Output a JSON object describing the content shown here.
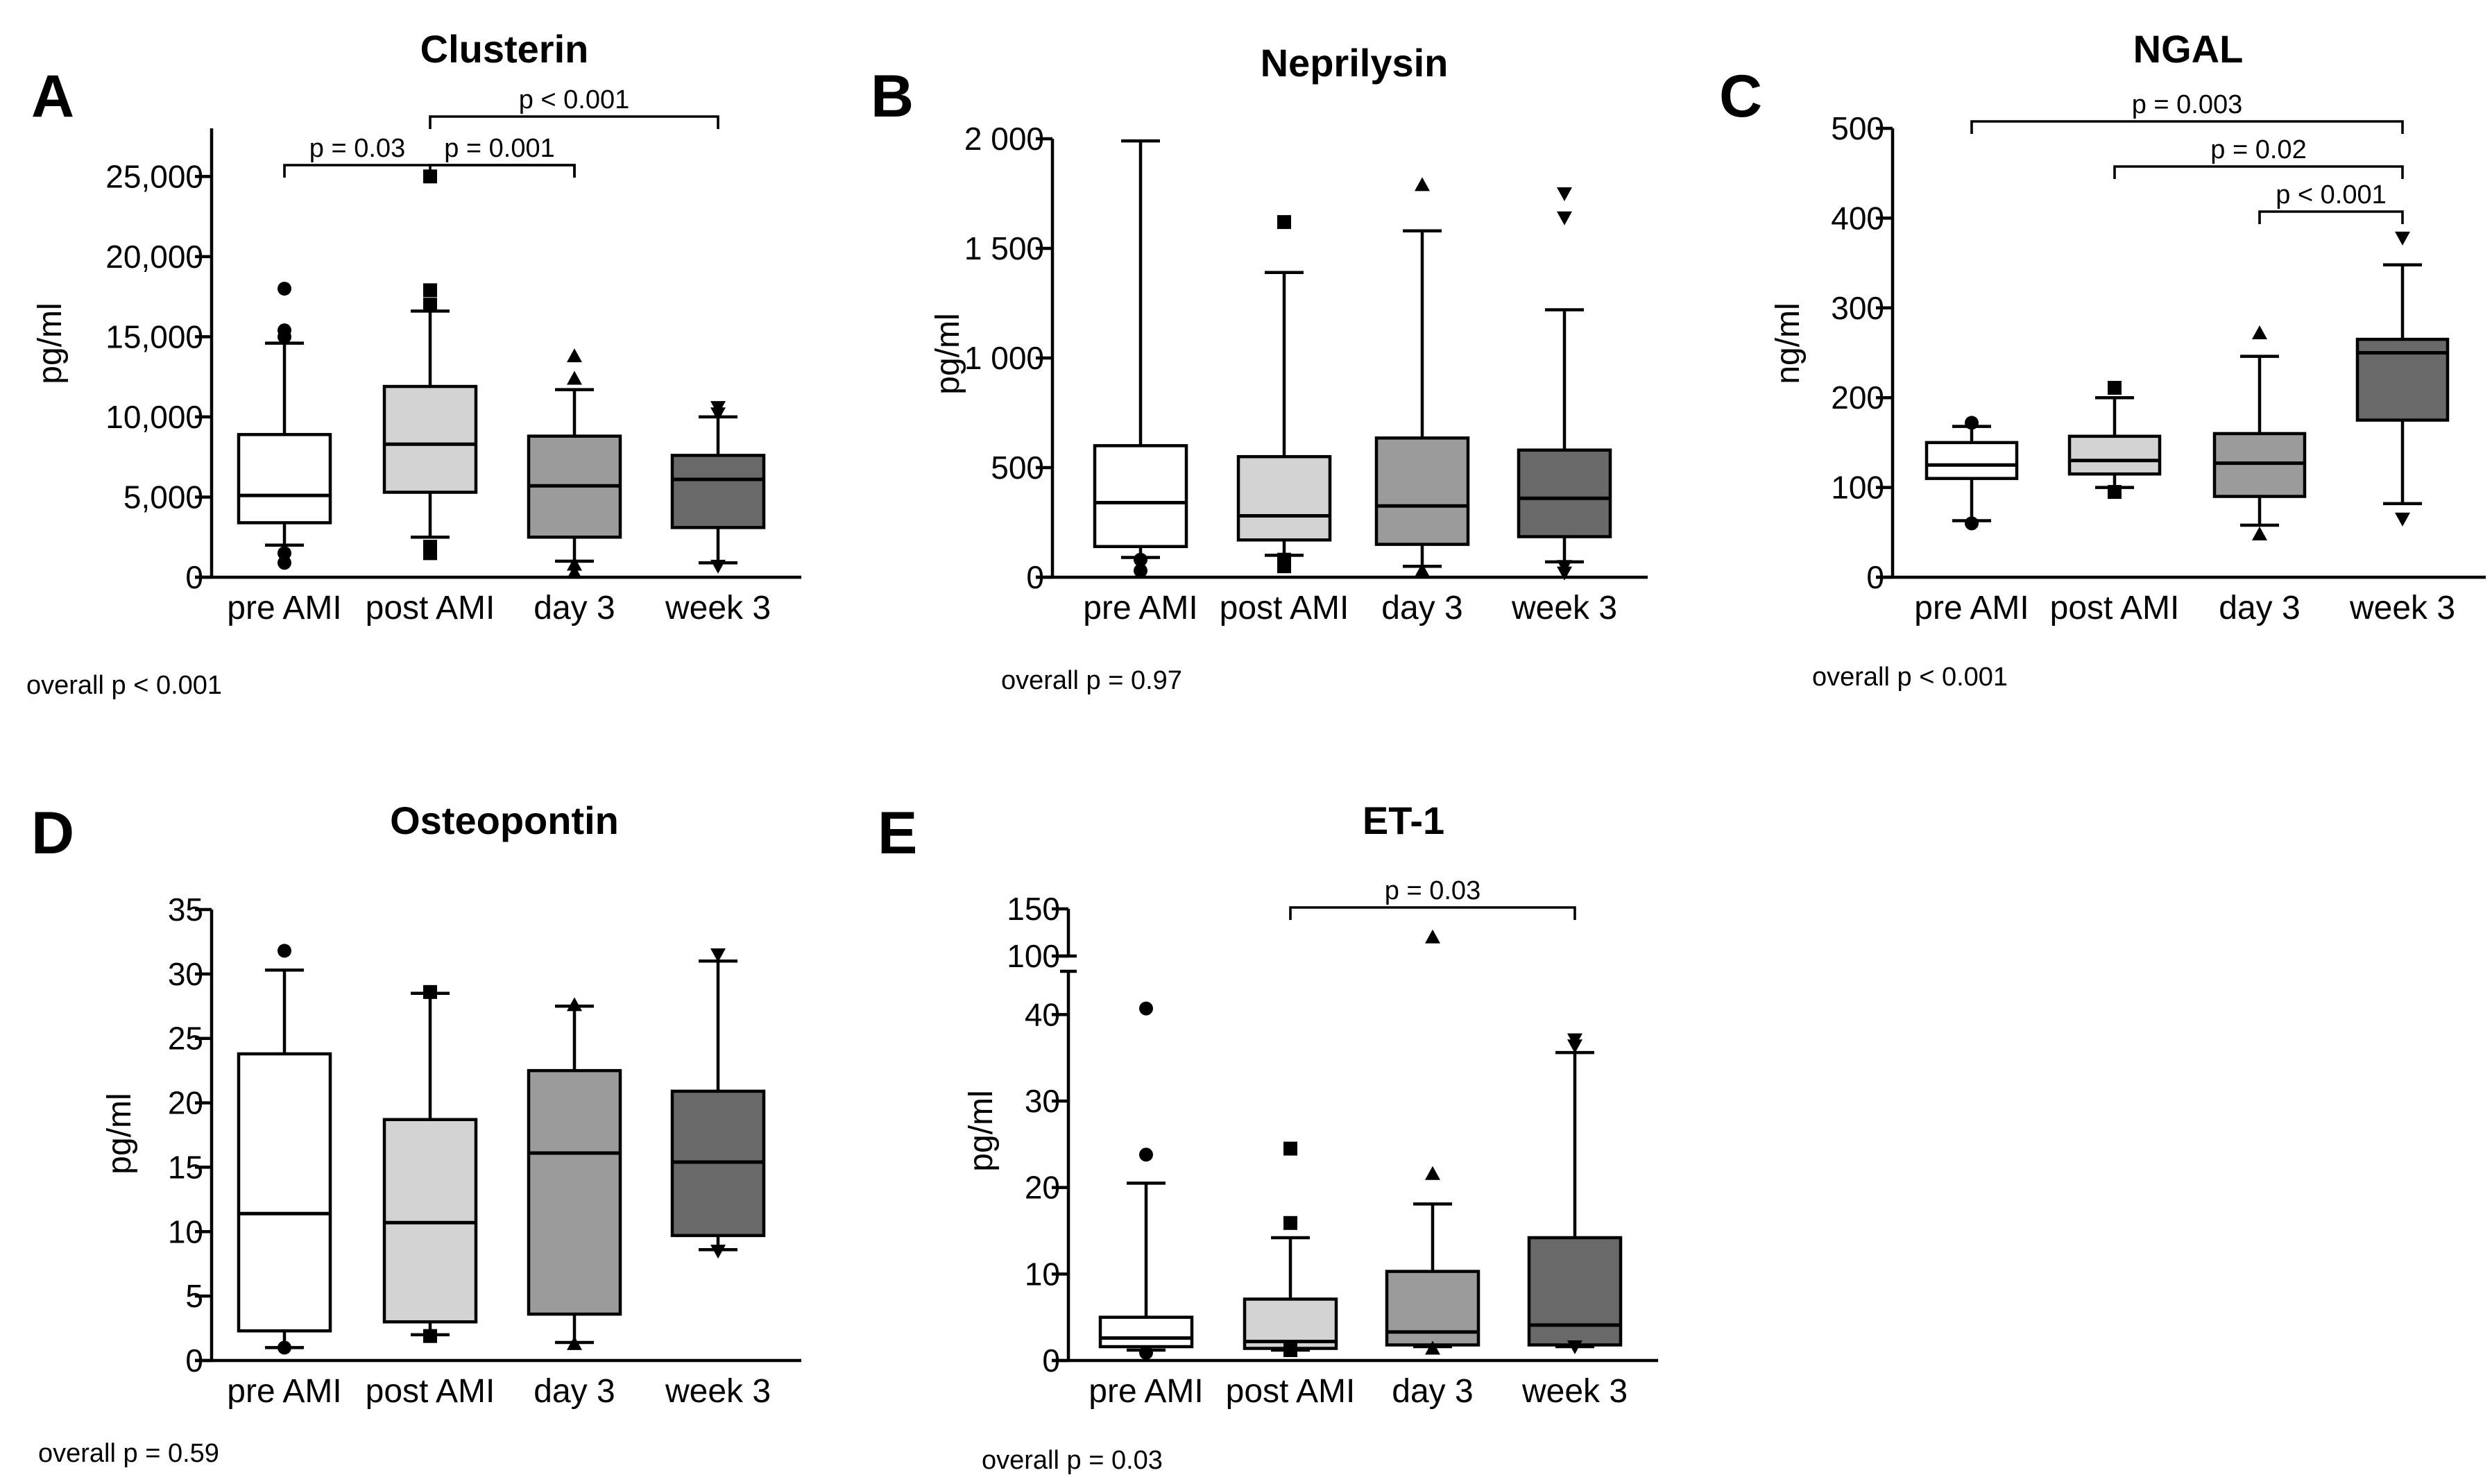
{
  "chart_data": [
    {
      "type": "box",
      "panel": "A",
      "title": "Clusterin",
      "ylabel": "pg/ml",
      "ylim": [
        0,
        28000
      ],
      "yticks": [
        0,
        5000,
        10000,
        15000,
        20000,
        25000
      ],
      "ytick_labels": [
        "0",
        "5,000",
        "10,000",
        "15,000",
        "20,000",
        "25,000"
      ],
      "categories": [
        "pre AMI",
        "post AMI",
        "day 3",
        "week 3"
      ],
      "box_fill": [
        "#ffffff",
        "#d3d3d3",
        "#9b9b9b",
        "#696969"
      ],
      "marker": [
        "circle",
        "square",
        "triangle-up",
        "triangle-down"
      ],
      "boxes": [
        {
          "whislo": 2000,
          "q1": 3400,
          "med": 5100,
          "q3": 8900,
          "whishi": 14600,
          "fliers": [
            18000,
            15400,
            15000,
            1500,
            900
          ]
        },
        {
          "whislo": 2500,
          "q1": 5300,
          "med": 8300,
          "q3": 11900,
          "whishi": 16600,
          "fliers": [
            25000,
            17900,
            17000,
            1900,
            1500
          ]
        },
        {
          "whislo": 1000,
          "q1": 2500,
          "med": 5700,
          "q3": 8800,
          "whishi": 11700,
          "fliers": [
            13800,
            12400,
            800,
            300
          ]
        },
        {
          "whislo": 900,
          "q1": 3100,
          "med": 6100,
          "q3": 7600,
          "whishi": 10000,
          "fliers": [
            10600,
            10200,
            700
          ]
        }
      ],
      "significance": [
        {
          "from": 0,
          "to": 2,
          "label": "p = 0.03",
          "level": 0
        },
        {
          "from": 1,
          "to": 2,
          "label": "p = 0.001",
          "level": 0
        },
        {
          "from": 1,
          "to": 3,
          "label": "p < 0.001",
          "level": 1
        }
      ],
      "overall": "overall p < 0.001"
    },
    {
      "type": "box",
      "panel": "B",
      "title": "Neprilysin",
      "ylabel": "pg/ml",
      "ylim": [
        0,
        2000
      ],
      "yticks": [
        0,
        500,
        1000,
        1500,
        2000
      ],
      "ytick_labels": [
        "0",
        "500",
        "1 000",
        "1 500",
        "2 000"
      ],
      "categories": [
        "pre AMI",
        "post AMI",
        "day 3",
        "week 3"
      ],
      "box_fill": [
        "#ffffff",
        "#d3d3d3",
        "#9b9b9b",
        "#696969"
      ],
      "marker": [
        "circle",
        "square",
        "triangle-up",
        "triangle-down"
      ],
      "boxes": [
        {
          "whislo": 90,
          "q1": 140,
          "med": 340,
          "q3": 600,
          "whishi": 1990,
          "fliers": [
            80,
            30
          ]
        },
        {
          "whislo": 100,
          "q1": 170,
          "med": 280,
          "q3": 550,
          "whishi": 1390,
          "fliers": [
            1620,
            80,
            50
          ]
        },
        {
          "whislo": 50,
          "q1": 150,
          "med": 325,
          "q3": 635,
          "whishi": 1580,
          "fliers": [
            1790,
            30
          ]
        },
        {
          "whislo": 70,
          "q1": 185,
          "med": 360,
          "q3": 580,
          "whishi": 1220,
          "fliers": [
            1750,
            1640,
            50,
            20
          ]
        }
      ],
      "significance": [],
      "overall": "overall p = 0.97"
    },
    {
      "type": "box",
      "panel": "C",
      "title": "NGAL",
      "ylabel": "ng/ml",
      "ylim": [
        0,
        500
      ],
      "yticks": [
        0,
        100,
        200,
        300,
        400,
        500
      ],
      "ytick_labels": [
        "0",
        "100",
        "200",
        "300",
        "400",
        "500"
      ],
      "categories": [
        "pre AMI",
        "post AMI",
        "day 3",
        "week 3"
      ],
      "box_fill": [
        "#ffffff",
        "#d3d3d3",
        "#9b9b9b",
        "#696969"
      ],
      "marker": [
        "circle",
        "square",
        "triangle-up",
        "triangle-down"
      ],
      "boxes": [
        {
          "whislo": 63,
          "q1": 110,
          "med": 125,
          "q3": 150,
          "whishi": 168,
          "fliers": [
            172,
            60
          ]
        },
        {
          "whislo": 100,
          "q1": 115,
          "med": 130,
          "q3": 157,
          "whishi": 200,
          "fliers": [
            211,
            95
          ]
        },
        {
          "whislo": 58,
          "q1": 90,
          "med": 127,
          "q3": 160,
          "whishi": 246,
          "fliers": [
            272,
            48
          ]
        },
        {
          "whislo": 82,
          "q1": 175,
          "med": 250,
          "q3": 265,
          "whishi": 348,
          "fliers": [
            378,
            65
          ]
        }
      ],
      "significance": [
        {
          "from": 0,
          "to": 3,
          "label": "p = 0.003",
          "level": 2
        },
        {
          "from": 1,
          "to": 3,
          "label": "p = 0.02",
          "level": 1
        },
        {
          "from": 2,
          "to": 3,
          "label": "p < 0.001",
          "level": 0
        }
      ],
      "overall": "overall p < 0.001"
    },
    {
      "type": "box",
      "panel": "D",
      "title": "Osteopontin",
      "ylabel": "pg/ml",
      "ylim": [
        0,
        35
      ],
      "yticks": [
        0,
        5,
        10,
        15,
        20,
        25,
        30,
        35
      ],
      "ytick_labels": [
        "0",
        "5",
        "10",
        "15",
        "20",
        "25",
        "30",
        "35"
      ],
      "categories": [
        "pre AMI",
        "post AMI",
        "day 3",
        "week 3"
      ],
      "box_fill": [
        "#ffffff",
        "#d3d3d3",
        "#9b9b9b",
        "#696969"
      ],
      "marker": [
        "circle",
        "square",
        "triangle-up",
        "triangle-down"
      ],
      "boxes": [
        {
          "whislo": 1.0,
          "q1": 2.3,
          "med": 11.4,
          "q3": 23.8,
          "whishi": 30.3,
          "fliers": [
            31.8,
            1.0
          ]
        },
        {
          "whislo": 2.0,
          "q1": 3.0,
          "med": 10.7,
          "q3": 18.7,
          "whishi": 28.5,
          "fliers": [
            28.6,
            1.9
          ]
        },
        {
          "whislo": 1.4,
          "q1": 3.6,
          "med": 16.1,
          "q3": 22.5,
          "whishi": 27.5,
          "fliers": [
            27.6,
            1.3
          ]
        },
        {
          "whislo": 8.6,
          "q1": 9.7,
          "med": 15.4,
          "q3": 20.9,
          "whishi": 31.0,
          "fliers": [
            31.5,
            8.5
          ]
        }
      ],
      "significance": [],
      "overall": "overall p = 0.59"
    },
    {
      "type": "box",
      "panel": "E",
      "title": "ET-1",
      "ylabel": "pg/ml",
      "ylim": [
        0,
        45
      ],
      "yticks": [
        0,
        10,
        20,
        30,
        40
      ],
      "ytick_labels": [
        "0",
        "10",
        "20",
        "30",
        "40"
      ],
      "axis_break": {
        "upper_range": [
          100,
          150
        ],
        "upper_ticks": [
          100,
          150
        ],
        "upper_tick_labels": [
          "100",
          "150"
        ]
      },
      "categories": [
        "pre AMI",
        "post AMI",
        "day 3",
        "week 3"
      ],
      "box_fill": [
        "#ffffff",
        "#d3d3d3",
        "#9b9b9b",
        "#696969"
      ],
      "marker": [
        "circle",
        "square",
        "triangle-up",
        "triangle-down"
      ],
      "boxes": [
        {
          "whislo": 1.2,
          "q1": 1.6,
          "med": 2.6,
          "q3": 5.0,
          "whishi": 20.5,
          "fliers": [
            40.7,
            23.8,
            0.9
          ]
        },
        {
          "whislo": 1.2,
          "q1": 1.4,
          "med": 2.2,
          "q3": 7.1,
          "whishi": 14.2,
          "fliers": [
            24.5,
            15.9,
            1.2
          ]
        },
        {
          "whislo": 1.6,
          "q1": 1.8,
          "med": 3.3,
          "q3": 10.3,
          "whishi": 18.1,
          "fliers": [
            120,
            21.6,
            1.4
          ]
        },
        {
          "whislo": 1.6,
          "q1": 1.8,
          "med": 4.1,
          "q3": 14.2,
          "whishi": 35.6,
          "fliers": [
            37.1,
            36.4,
            1.6
          ]
        }
      ],
      "significance": [
        {
          "from": 1,
          "to": 3,
          "label": "p = 0.03",
          "level": 0
        }
      ],
      "overall": "overall p = 0.03"
    }
  ]
}
